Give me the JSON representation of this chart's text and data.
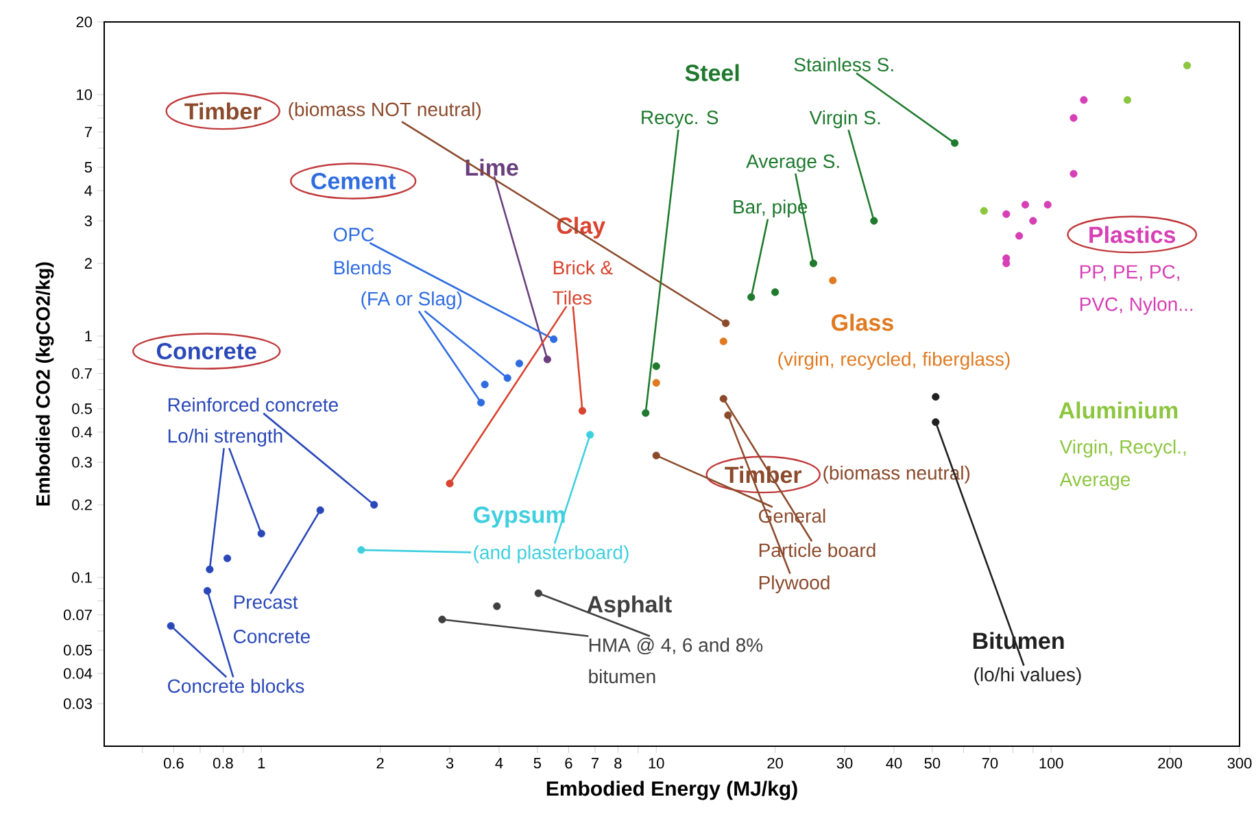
{
  "chart_data": {
    "type": "scatter",
    "xlabel": "Embodied Energy (MJ/kg)",
    "ylabel": "Embodied CO2 (kgCO2/kg)",
    "log": "xy",
    "grid": false,
    "marker": "circle",
    "xlim": [
      0.4,
      300
    ],
    "ylim": [
      0.02,
      20
    ],
    "xticks": [
      {
        "value": 0.5,
        "label": null
      },
      0.6,
      {
        "value": 0.7,
        "label": null
      },
      0.8,
      {
        "value": 0.9,
        "label": null
      },
      1,
      2,
      3,
      4,
      5,
      6,
      7,
      8,
      {
        "value": 9,
        "label": null
      },
      10,
      20,
      30,
      40,
      50,
      {
        "value": 60,
        "label": null
      },
      70,
      {
        "value": 80,
        "label": null
      },
      {
        "value": 90,
        "label": null
      },
      100,
      200,
      300
    ],
    "yticks": [
      0.03,
      0.04,
      0.05,
      {
        "value": 0.06,
        "label": null
      },
      0.07,
      {
        "value": 0.08,
        "label": null
      },
      {
        "value": 0.09,
        "label": null
      },
      0.1,
      0.2,
      0.3,
      0.4,
      0.5,
      {
        "value": 0.6,
        "label": null
      },
      0.7,
      {
        "value": 0.8,
        "label": null
      },
      {
        "value": 0.9,
        "label": null
      },
      1,
      2,
      3,
      4,
      5,
      {
        "value": 6,
        "label": null
      },
      7,
      {
        "value": 8,
        "label": null
      },
      {
        "value": 9,
        "label": null
      },
      10,
      20
    ],
    "series": [
      {
        "name": "Concrete",
        "color": "#2a48b8",
        "x": [
          0.59,
          0.73,
          0.74,
          0.82,
          1.0,
          1.41,
          1.93
        ],
        "values": [
          0.063,
          0.088,
          0.108,
          0.12,
          0.152,
          0.19,
          0.2
        ]
      },
      {
        "name": "Cement",
        "color": "#2f6ce0",
        "x": [
          3.6,
          3.68,
          4.2,
          4.5,
          5.5
        ],
        "values": [
          0.53,
          0.63,
          0.67,
          0.77,
          0.97
        ]
      },
      {
        "name": "Lime",
        "color": "#6a3f7e",
        "x": [
          5.3
        ],
        "values": [
          0.8
        ]
      },
      {
        "name": "Clay",
        "color": "#d9432f",
        "x": [
          6.5,
          3.0
        ],
        "values": [
          0.49,
          0.245
        ]
      },
      {
        "name": "Gypsum",
        "color": "#3fcfdf",
        "x": [
          6.8,
          1.79
        ],
        "values": [
          0.39,
          0.13
        ]
      },
      {
        "name": "Asphalt",
        "color": "#404040",
        "x": [
          2.87,
          3.95,
          5.03
        ],
        "values": [
          0.067,
          0.076,
          0.086
        ]
      },
      {
        "name": "Steel",
        "color": "#1f7a2e",
        "x": [
          17.4,
          20,
          25,
          35.6,
          57,
          9.4,
          10
        ],
        "values": [
          1.45,
          1.52,
          2.0,
          3.0,
          6.3,
          0.48,
          0.75
        ]
      },
      {
        "name": "Glass",
        "color": "#e07a20",
        "x": [
          10,
          14.8,
          28
        ],
        "values": [
          0.64,
          0.95,
          1.7
        ]
      },
      {
        "name": "Timber",
        "color": "#8b4a2b",
        "x": [
          15
        ],
        "values": [
          1.13
        ]
      },
      {
        "name": "Timber",
        "color": "#8b4a2b",
        "x": [
          14.8,
          15.2,
          10
        ],
        "values": [
          0.55,
          0.47,
          0.32
        ]
      },
      {
        "name": "Bitumen",
        "color": "#202020",
        "x": [
          51,
          51
        ],
        "values": [
          0.56,
          0.44
        ]
      },
      {
        "name": "Aluminium",
        "color": "#8cc63f",
        "x": [
          67.6,
          156,
          221
        ],
        "values": [
          3.3,
          9.5,
          13.2
        ]
      },
      {
        "name": "Plastics",
        "color": "#d63fb5",
        "x": [
          121,
          114,
          114,
          77,
          86,
          98,
          90,
          83,
          77,
          77
        ],
        "values": [
          9.5,
          8.0,
          4.7,
          3.2,
          3.5,
          3.5,
          3.0,
          2.6,
          2.1,
          2.0
        ]
      }
    ],
    "annotations": [
      {
        "text": "(biomass NOT neutral)",
        "x": 15,
        "y": 1.13
      },
      {
        "text": "OPC",
        "x": 5.5,
        "y": 0.97
      },
      "Blends",
      {
        "text": "(FA or Slag)",
        "x": 3.6,
        "y": 0.53
      },
      "Brick &",
      {
        "text": "Tiles",
        "x": 6.5,
        "y": 0.49
      },
      {
        "text": "Reinforced concrete",
        "x": 1.93,
        "y": 0.2
      },
      {
        "text": "Lo/hi strength",
        "x": 0.74,
        "y": 0.108
      },
      {
        "text": "Precast",
        "x": 1.41,
        "y": 0.19
      },
      "Concrete",
      {
        "text": "Concrete blocks",
        "x": 0.59,
        "y": 0.063
      },
      {
        "text": "(and plasterboard)",
        "x": 6.8,
        "y": 0.39
      },
      {
        "text": "HMA @ 4, 6 and 8%",
        "x": 2.87,
        "y": 0.067
      },
      "bitumen",
      {
        "text": "Recyc. S",
        "x": 9.4,
        "y": 0.48
      },
      {
        "text": "Stainless S.",
        "x": 57,
        "y": 6.3
      },
      {
        "text": "Virgin S.",
        "x": 35.6,
        "y": 3.0
      },
      {
        "text": "Average S.",
        "x": 25,
        "y": 2.0
      },
      {
        "text": "Bar, pipe",
        "x": 17.4,
        "y": 1.45
      },
      "(virgin, recycled, fiberglass)",
      "PP, PE, PC,",
      "PVC, Nylon...",
      "Virgin, Recycl.,",
      "Average",
      "(biomass neutral)",
      {
        "text": "General",
        "x": 10,
        "y": 0.32
      },
      {
        "text": "Particle board",
        "x": 14.8,
        "y": 0.55
      },
      {
        "text": "Plywood",
        "x": 15.2,
        "y": 0.47
      },
      {
        "text": "(lo/hi values)",
        "x": 51,
        "y": 0.44
      }
    ]
  }
}
